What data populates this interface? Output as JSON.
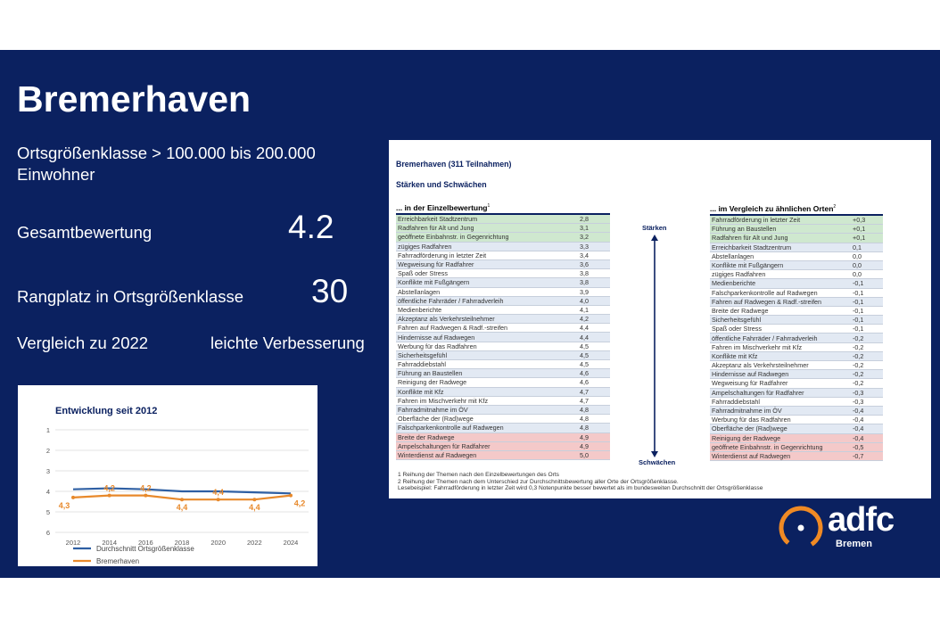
{
  "title": "Bremerhaven",
  "size_class_line": "Ortsgrößenklasse > 100.000 bis 200.000 Einwohner",
  "overall": {
    "label": "Gesamtbewertung",
    "value": "4.2"
  },
  "rank": {
    "label": "Rangplatz in Ortsgrößenklasse",
    "value": "30"
  },
  "comparison": {
    "label": "Vergleich zu 2022",
    "value": "leichte Verbesserung"
  },
  "chart_data": {
    "type": "line",
    "title": "Entwicklung seit 2012",
    "x": [
      "2012",
      "2014",
      "2016",
      "2018",
      "2020",
      "2022",
      "2024"
    ],
    "yticks": [
      "1",
      "2",
      "3",
      "4",
      "5",
      "6"
    ],
    "ylim": [
      1,
      6
    ],
    "y_inverted": true,
    "grid": true,
    "legend_position": "bottom-left",
    "series": [
      {
        "name": "Durchschnitt Ortsgrößenklasse",
        "color": "#2e5fa3",
        "values": [
          3.9,
          3.85,
          3.9,
          4.0,
          4.0,
          4.05,
          4.1
        ]
      },
      {
        "name": "Bremerhaven",
        "color": "#e8892b",
        "values": [
          4.3,
          4.2,
          4.2,
          4.4,
          4.4,
          4.4,
          4.2
        ],
        "labels": [
          "4,3",
          "4,2",
          "4,2",
          "4,4",
          "4,4",
          "4,4",
          "4,2"
        ]
      }
    ]
  },
  "table_panel": {
    "heading": "Bremerhaven (311 Teilnahmen)",
    "subheading": "Stärken und Schwächen",
    "left_title": "... in der Einzelbewertung",
    "left_title_sup": "1",
    "right_title": "... im Vergleich zu ähnlichen Orten",
    "right_title_sup": "2",
    "arrow_top": "Stärken",
    "arrow_bottom": "Schwächen",
    "left_rows": [
      {
        "name": "Erreichbarkeit Stadtzentrum",
        "value": "2,8",
        "tone": "green"
      },
      {
        "name": "Radfahren für Alt und Jung",
        "value": "3,1",
        "tone": "green"
      },
      {
        "name": "geöffnete Einbahnstr. in Gegenrichtung",
        "value": "3,2",
        "tone": "green"
      },
      {
        "name": "zügiges Radfahren",
        "value": "3,3",
        "tone": "blue"
      },
      {
        "name": "Fahrradförderung in letzter Zeit",
        "value": "3,4",
        "tone": "white"
      },
      {
        "name": "Wegweisung für Radfahrer",
        "value": "3,6",
        "tone": "blue"
      },
      {
        "name": "Spaß oder Stress",
        "value": "3,8",
        "tone": "white"
      },
      {
        "name": "Konflikte mit Fußgängern",
        "value": "3,8",
        "tone": "blue"
      },
      {
        "name": "Abstellanlagen",
        "value": "3,9",
        "tone": "white"
      },
      {
        "name": "öffentliche Fahrräder / Fahrradverleih",
        "value": "4,0",
        "tone": "blue"
      },
      {
        "name": "Medienberichte",
        "value": "4,1",
        "tone": "white"
      },
      {
        "name": "Akzeptanz als Verkehrsteilnehmer",
        "value": "4,2",
        "tone": "blue"
      },
      {
        "name": "Fahren auf Radwegen & Radf.-streifen",
        "value": "4,4",
        "tone": "white"
      },
      {
        "name": "Hindernisse auf Radwegen",
        "value": "4,4",
        "tone": "blue"
      },
      {
        "name": "Werbung für das Radfahren",
        "value": "4,5",
        "tone": "white"
      },
      {
        "name": "Sicherheitsgefühl",
        "value": "4,5",
        "tone": "blue"
      },
      {
        "name": "Fahrraddiebstahl",
        "value": "4,5",
        "tone": "white"
      },
      {
        "name": "Führung an Baustellen",
        "value": "4,6",
        "tone": "blue"
      },
      {
        "name": "Reinigung der Radwege",
        "value": "4,6",
        "tone": "white"
      },
      {
        "name": "Konflikte mit Kfz",
        "value": "4,7",
        "tone": "blue"
      },
      {
        "name": "Fahren im Mischverkehr mit Kfz",
        "value": "4,7",
        "tone": "white"
      },
      {
        "name": "Fahrradmitnahme im ÖV",
        "value": "4,8",
        "tone": "blue"
      },
      {
        "name": "Oberfläche der (Rad)wege",
        "value": "4,8",
        "tone": "white"
      },
      {
        "name": "Falschparkenkontrolle auf Radwegen",
        "value": "4,8",
        "tone": "blue"
      },
      {
        "name": "Breite der Radwege",
        "value": "4,9",
        "tone": "red"
      },
      {
        "name": "Ampelschaltungen für Radfahrer",
        "value": "4,9",
        "tone": "red"
      },
      {
        "name": "Winterdienst auf Radwegen",
        "value": "5,0",
        "tone": "red"
      }
    ],
    "right_rows": [
      {
        "name": "Fahrradförderung in letzter Zeit",
        "value": "+0,3",
        "tone": "green"
      },
      {
        "name": "Führung an Baustellen",
        "value": "+0,1",
        "tone": "green"
      },
      {
        "name": "Radfahren für Alt und Jung",
        "value": "+0,1",
        "tone": "green"
      },
      {
        "name": "Erreichbarkeit Stadtzentrum",
        "value": "0,1",
        "tone": "blue"
      },
      {
        "name": "Abstellanlagen",
        "value": "0,0",
        "tone": "white"
      },
      {
        "name": "Konflikte mit Fußgängern",
        "value": "0,0",
        "tone": "blue"
      },
      {
        "name": "zügiges Radfahren",
        "value": "0,0",
        "tone": "white"
      },
      {
        "name": "Medienberichte",
        "value": "-0,1",
        "tone": "blue"
      },
      {
        "name": "Falschparkenkontrolle auf Radwegen",
        "value": "-0,1",
        "tone": "white"
      },
      {
        "name": "Fahren auf Radwegen & Radf.-streifen",
        "value": "-0,1",
        "tone": "blue"
      },
      {
        "name": "Breite der Radwege",
        "value": "-0,1",
        "tone": "white"
      },
      {
        "name": "Sicherheitsgefühl",
        "value": "-0,1",
        "tone": "blue"
      },
      {
        "name": "Spaß oder Stress",
        "value": "-0,1",
        "tone": "white"
      },
      {
        "name": "öffentliche Fahrräder / Fahrradverleih",
        "value": "-0,2",
        "tone": "blue"
      },
      {
        "name": "Fahren im Mischverkehr mit Kfz",
        "value": "-0,2",
        "tone": "white"
      },
      {
        "name": "Konflikte mit Kfz",
        "value": "-0,2",
        "tone": "blue"
      },
      {
        "name": "Akzeptanz als Verkehrsteilnehmer",
        "value": "-0,2",
        "tone": "white"
      },
      {
        "name": "Hindernisse auf Radwegen",
        "value": "-0,2",
        "tone": "blue"
      },
      {
        "name": "Wegweisung für Radfahrer",
        "value": "-0,2",
        "tone": "white"
      },
      {
        "name": "Ampelschaltungen für Radfahrer",
        "value": "-0,3",
        "tone": "blue"
      },
      {
        "name": "Fahrraddiebstahl",
        "value": "-0,3",
        "tone": "white"
      },
      {
        "name": "Fahrradmitnahme im ÖV",
        "value": "-0,4",
        "tone": "blue"
      },
      {
        "name": "Werbung für das Radfahren",
        "value": "-0,4",
        "tone": "white"
      },
      {
        "name": "Oberfläche der (Rad)wege",
        "value": "-0,4",
        "tone": "blue"
      },
      {
        "name": "Reinigung der Radwege",
        "value": "-0,4",
        "tone": "red"
      },
      {
        "name": "geöffnete Einbahnstr. in Gegenrichtung",
        "value": "-0,5",
        "tone": "red"
      },
      {
        "name": "Winterdienst auf Radwegen",
        "value": "-0,7",
        "tone": "red"
      }
    ],
    "footnotes": [
      "1  Reihung der Themen nach den Einzelbewertungen des Orts",
      "2  Reihung der Themen nach dem Unterschied zur Durchschnittsbewertung aller Orte der Ortsgrößenklasse.",
      "    Lesebeispiel: Fahrradförderung in letzter Zeit wird 0,3 Notenpunkte besser bewertet als im bundesweiten Durchschnitt der Ortsgrößenklasse"
    ]
  },
  "logo": {
    "text": "adfc",
    "sub": "Bremen",
    "ring_color": "#f08a24"
  }
}
